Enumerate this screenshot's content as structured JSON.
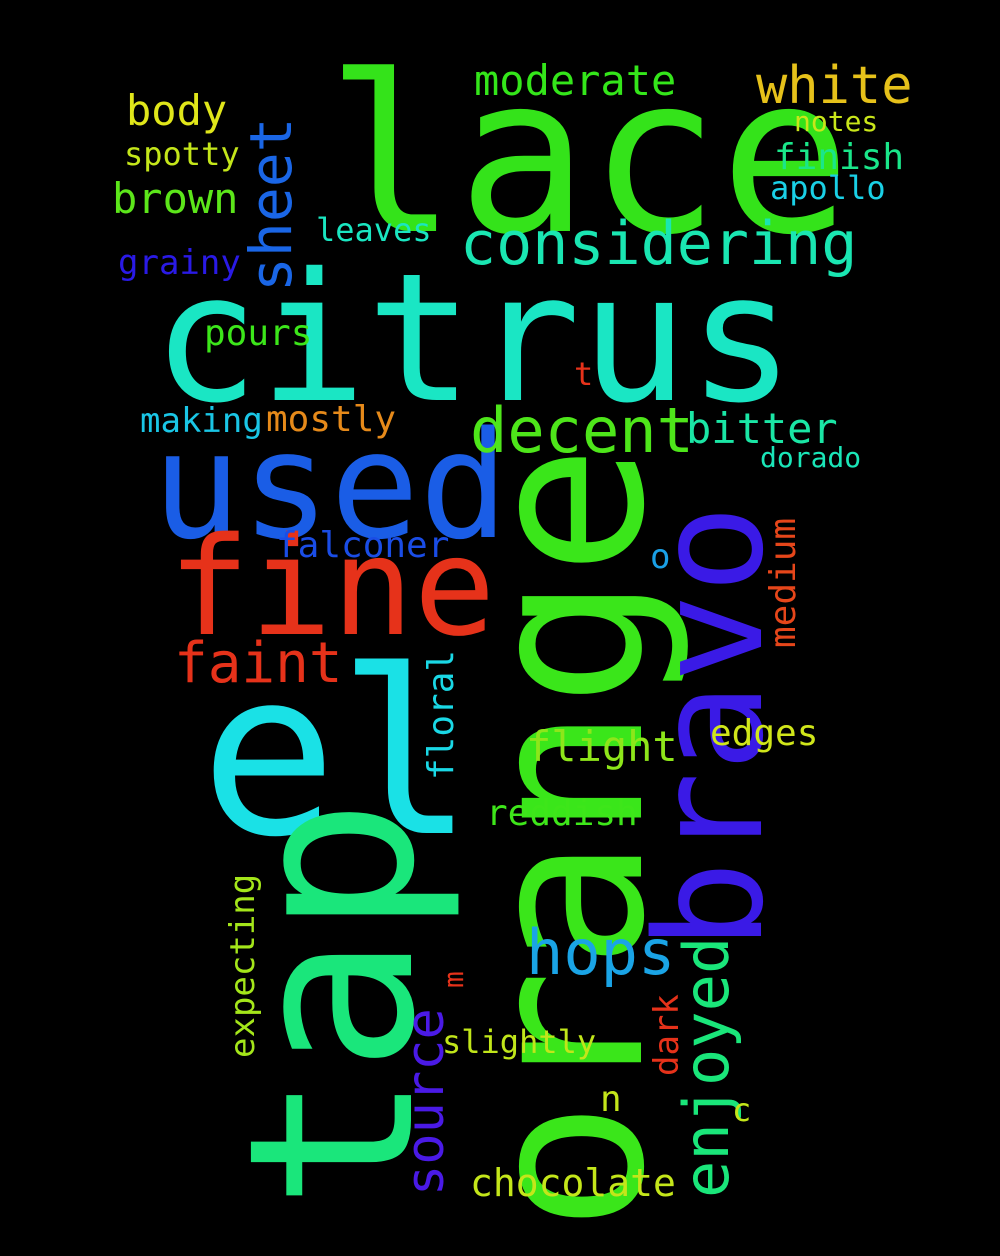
{
  "background": "#000000",
  "words": [
    {
      "text": "lace",
      "color": "#34e31a"
    },
    {
      "text": "citrus",
      "color": "#1ae6c4"
    },
    {
      "text": "used",
      "color": "#1a5de6"
    },
    {
      "text": "el",
      "color": "#1ae1e6"
    },
    {
      "text": "orange",
      "color": "#3ae61a"
    },
    {
      "text": "tap",
      "color": "#1ae67b"
    },
    {
      "text": "bravo",
      "color": "#3a1ae6"
    },
    {
      "text": "fine",
      "color": "#e6321a"
    },
    {
      "text": "considering",
      "color": "#1ae6b2"
    },
    {
      "text": "decent",
      "color": "#4ee61a"
    },
    {
      "text": "sheet",
      "color": "#1a66e6"
    },
    {
      "text": "white",
      "color": "#e6c11a"
    },
    {
      "text": "moderate",
      "color": "#34e61a"
    },
    {
      "text": "body",
      "color": "#e0e61a"
    },
    {
      "text": "spotty",
      "color": "#c4e61a"
    },
    {
      "text": "brown",
      "color": "#5ce61a"
    },
    {
      "text": "grainy",
      "color": "#2a1ae6"
    },
    {
      "text": "leaves",
      "color": "#1ae6c1"
    },
    {
      "text": "notes",
      "color": "#c9e61a"
    },
    {
      "text": "finish",
      "color": "#1ae68a"
    },
    {
      "text": "apollo",
      "color": "#1ad0e6"
    },
    {
      "text": "pours",
      "color": "#3ce61a"
    },
    {
      "text": "t",
      "color": "#e6321a"
    },
    {
      "text": "making",
      "color": "#1ac6e6"
    },
    {
      "text": "mostly",
      "color": "#e68a1a"
    },
    {
      "text": "bitter",
      "color": "#1ae6a5"
    },
    {
      "text": "dorado",
      "color": "#1ae6b8"
    },
    {
      "text": "medium",
      "color": "#e6461a"
    },
    {
      "text": "falconer",
      "color": "#1a4de6"
    },
    {
      "text": "o",
      "color": "#1aa0e6"
    },
    {
      "text": "faint",
      "color": "#e6321a"
    },
    {
      "text": "floral",
      "color": "#1ad8e6"
    },
    {
      "text": "flight",
      "color": "#8ee61a"
    },
    {
      "text": "edges",
      "color": "#d0e61a"
    },
    {
      "text": "reddish",
      "color": "#3ee61a"
    },
    {
      "text": "enjoyed",
      "color": "#1ae67a"
    },
    {
      "text": "hops",
      "color": "#1aa4e6"
    },
    {
      "text": "expecting",
      "color": "#a4e61a"
    },
    {
      "text": "m",
      "color": "#e6321a"
    },
    {
      "text": "source",
      "color": "#4a1ae6"
    },
    {
      "text": "dark",
      "color": "#e6321a"
    },
    {
      "text": "slightly",
      "color": "#c1e61a"
    },
    {
      "text": "n",
      "color": "#c4e61a"
    },
    {
      "text": "c",
      "color": "#c4e61a"
    },
    {
      "text": "chocolate",
      "color": "#c4e61a"
    }
  ]
}
